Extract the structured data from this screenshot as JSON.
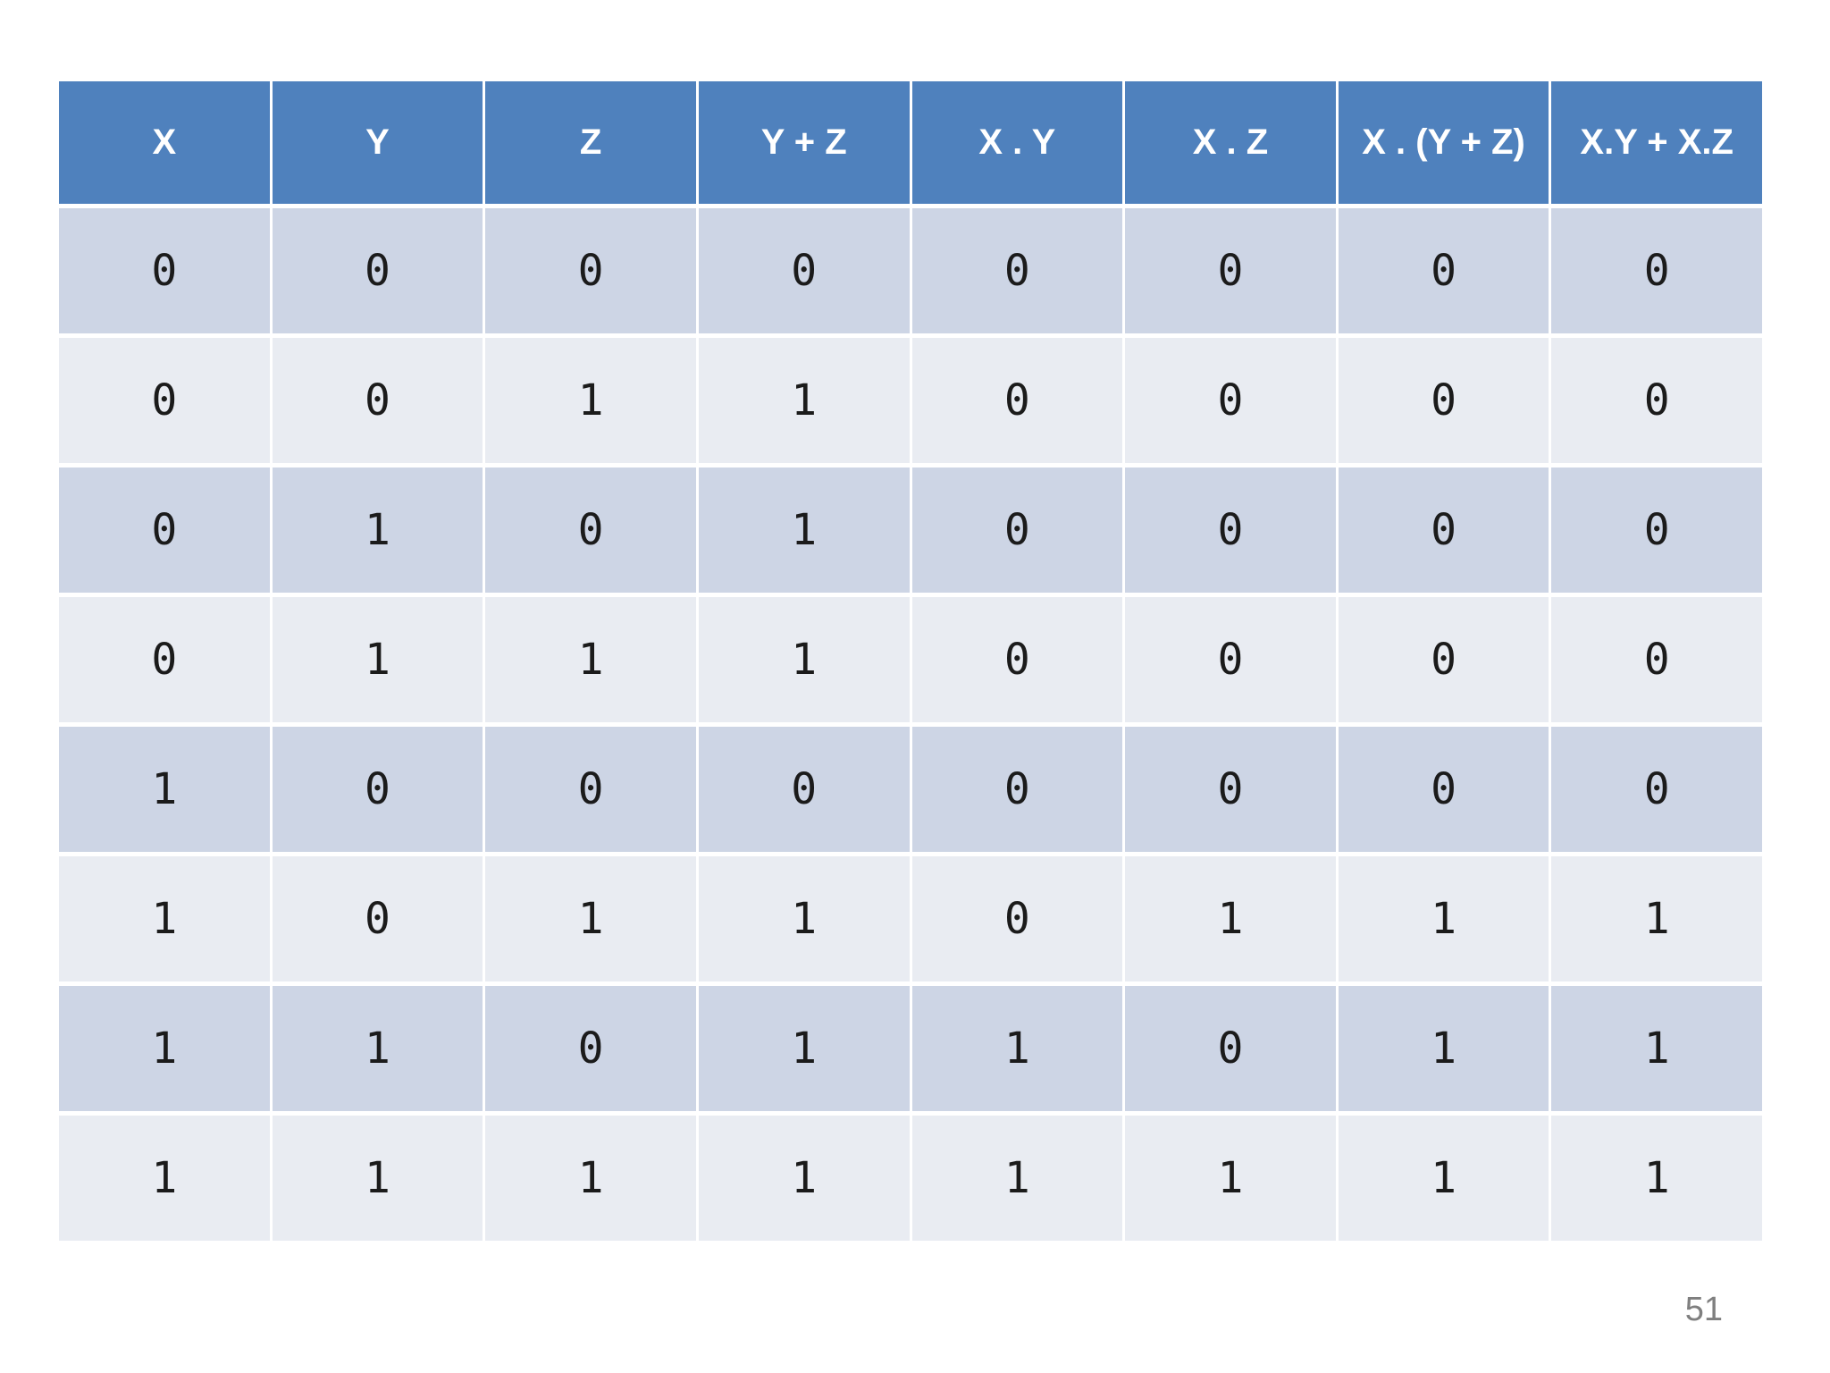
{
  "table": {
    "columns": [
      "X",
      "Y",
      "Z",
      "Y + Z",
      "X . Y",
      "X . Z",
      "X . (Y + Z)",
      "X.Y + X.Z"
    ],
    "rows": [
      [
        "0",
        "0",
        "0",
        "0",
        "0",
        "0",
        "0",
        "0"
      ],
      [
        "0",
        "0",
        "1",
        "1",
        "0",
        "0",
        "0",
        "0"
      ],
      [
        "0",
        "1",
        "0",
        "1",
        "0",
        "0",
        "0",
        "0"
      ],
      [
        "0",
        "1",
        "1",
        "1",
        "0",
        "0",
        "0",
        "0"
      ],
      [
        "1",
        "0",
        "0",
        "0",
        "0",
        "0",
        "0",
        "0"
      ],
      [
        "1",
        "0",
        "1",
        "1",
        "0",
        "1",
        "1",
        "1"
      ],
      [
        "1",
        "1",
        "0",
        "1",
        "1",
        "0",
        "1",
        "1"
      ],
      [
        "1",
        "1",
        "1",
        "1",
        "1",
        "1",
        "1",
        "1"
      ]
    ]
  },
  "page_number": "51",
  "colors": {
    "header_background": "#4f81bd",
    "header_text": "#ffffff",
    "band_dark": "#cdd5e5",
    "band_light": "#e9ecf2",
    "cell_text": "#1b1b1b",
    "page_number_text": "#7f7f7f"
  }
}
